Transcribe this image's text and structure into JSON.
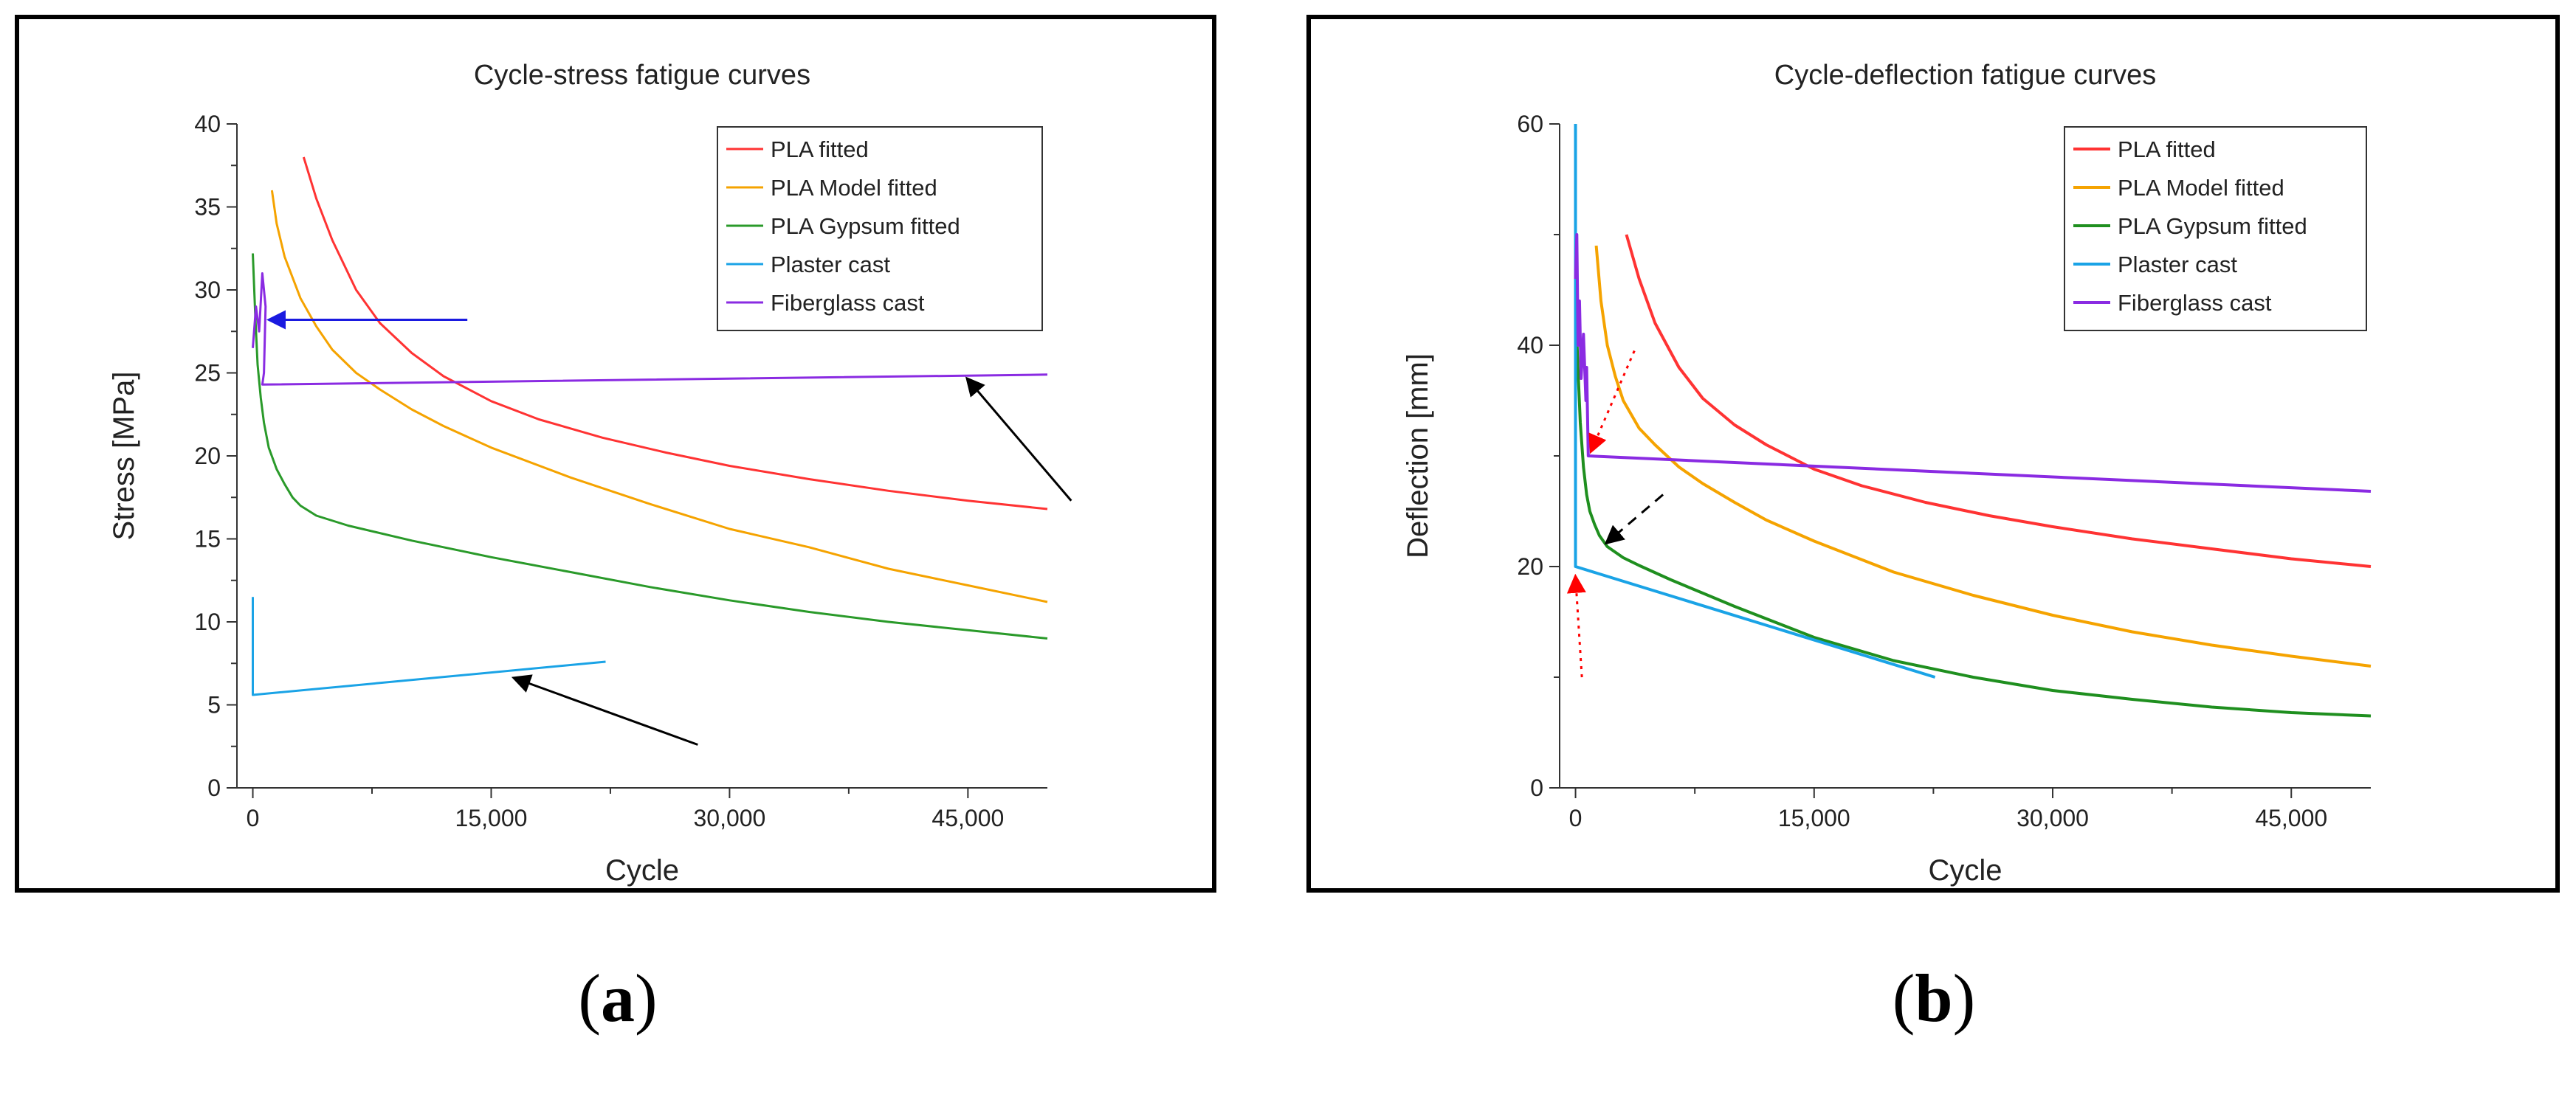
{
  "figure": {
    "captions": [
      {
        "open": "(",
        "letter": "a",
        "close": ")"
      },
      {
        "open": "(",
        "letter": "b",
        "close": ")"
      }
    ]
  },
  "chart_data": [
    {
      "type": "line",
      "title": "Cycle-stress fatigue curves",
      "xlabel": "Cycle",
      "ylabel": "Stress [MPa]",
      "xlim": [
        -1000,
        50000
      ],
      "ylim": [
        0,
        40
      ],
      "xticks": [
        0,
        15000,
        30000,
        45000
      ],
      "xtick_labels": [
        "0",
        "15,000",
        "30,000",
        "45,000"
      ],
      "yticks": [
        0,
        5,
        10,
        15,
        20,
        25,
        30,
        35,
        40
      ],
      "ytick_labels": [
        "0",
        "5",
        "10",
        "15",
        "20",
        "25",
        "30",
        "35",
        "40"
      ],
      "legend_position": "top-right",
      "series": [
        {
          "name": "PLA fitted",
          "color": "#ff3333",
          "x": [
            3200,
            4000,
            5000,
            6500,
            8000,
            10000,
            12000,
            15000,
            18000,
            22000,
            26000,
            30000,
            35000,
            40000,
            45000,
            50000
          ],
          "y": [
            38,
            35.5,
            33,
            30,
            28,
            26.2,
            24.8,
            23.3,
            22.2,
            21.1,
            20.2,
            19.4,
            18.6,
            17.9,
            17.3,
            16.8
          ]
        },
        {
          "name": "PLA Model fitted",
          "color": "#f5a300",
          "x": [
            1200,
            1500,
            2000,
            3000,
            4000,
            5000,
            6500,
            8000,
            10000,
            12000,
            15000,
            20000,
            25000,
            30000,
            35000,
            40000,
            45000,
            50000
          ],
          "y": [
            36,
            34,
            32,
            29.5,
            27.8,
            26.4,
            25,
            24,
            22.8,
            21.8,
            20.5,
            18.7,
            17.1,
            15.6,
            14.5,
            13.2,
            12.2,
            11.2
          ]
        },
        {
          "name": "PLA Gypsum fitted",
          "color": "#2a9a2a",
          "x": [
            0,
            150,
            300,
            500,
            700,
            1000,
            1500,
            2000,
            2500,
            3000,
            4000,
            6000,
            10000,
            15000,
            20000,
            25000,
            30000,
            35000,
            40000,
            45000,
            50000
          ],
          "y": [
            32.2,
            28.5,
            25.5,
            23.5,
            22,
            20.5,
            19.2,
            18.3,
            17.5,
            17,
            16.4,
            15.8,
            14.9,
            13.9,
            13,
            12.1,
            11.3,
            10.6,
            10,
            9.5,
            9
          ]
        },
        {
          "name": "Plaster cast",
          "color": "#1aa3e6",
          "x": [
            0,
            0,
            22200
          ],
          "y": [
            11.5,
            5.6,
            7.6
          ]
        },
        {
          "name": "Fiberglass cast",
          "color": "#8a2be2",
          "x": [
            0,
            200,
            400,
            600,
            800,
            700,
            600,
            50000
          ],
          "y": [
            26.5,
            29,
            27.5,
            31,
            29,
            25,
            24.3,
            24.9
          ]
        }
      ],
      "annotations": [
        {
          "type": "arrow",
          "color": "#1a1ae0",
          "style": "solid",
          "from": [
            13500,
            28.2
          ],
          "to": [
            1100,
            28.2
          ]
        },
        {
          "type": "arrow",
          "color": "#000000",
          "style": "solid",
          "from": [
            51500,
            17.3
          ],
          "to": [
            45000,
            24.6
          ]
        },
        {
          "type": "arrow",
          "color": "#000000",
          "style": "solid",
          "from": [
            28000,
            2.6
          ],
          "to": [
            16500,
            6.6
          ]
        }
      ]
    },
    {
      "type": "line",
      "title": "Cycle-deflection fatigue curves",
      "xlabel": "Cycle",
      "ylabel": "Deflection [mm]",
      "xlim": [
        -1000,
        50000
      ],
      "ylim": [
        0,
        60
      ],
      "xticks": [
        0,
        15000,
        30000,
        45000
      ],
      "xtick_labels": [
        "0",
        "15,000",
        "30,000",
        "45,000"
      ],
      "yticks": [
        0,
        20,
        40,
        60
      ],
      "ytick_labels": [
        "0",
        "20",
        "40",
        "60"
      ],
      "legend_position": "top-right",
      "series": [
        {
          "name": "PLA fitted",
          "color": "#ff3333",
          "x": [
            3200,
            4000,
            5000,
            6500,
            8000,
            10000,
            12000,
            15000,
            18000,
            22000,
            26000,
            30000,
            35000,
            40000,
            45000,
            50000
          ],
          "y": [
            50,
            46,
            42,
            38,
            35.2,
            32.8,
            31,
            28.8,
            27.3,
            25.8,
            24.6,
            23.6,
            22.5,
            21.6,
            20.7,
            20
          ]
        },
        {
          "name": "PLA Model fitted",
          "color": "#f5a300",
          "x": [
            1300,
            1600,
            2000,
            2500,
            3000,
            4000,
            5000,
            6500,
            8000,
            10000,
            12000,
            15000,
            20000,
            25000,
            30000,
            35000,
            40000,
            45000,
            50000
          ],
          "y": [
            49,
            44,
            40,
            37.2,
            35,
            32.5,
            31,
            29,
            27.5,
            25.8,
            24.2,
            22.3,
            19.5,
            17.4,
            15.6,
            14.1,
            12.9,
            11.9,
            11
          ]
        },
        {
          "name": "PLA Gypsum fitted",
          "color": "#1f8f1f",
          "x": [
            50,
            150,
            300,
            500,
            700,
            900,
            1200,
            1500,
            2000,
            3000,
            4000,
            6000,
            8000,
            10000,
            15000,
            20000,
            25000,
            30000,
            35000,
            40000,
            45000,
            50000
          ],
          "y": [
            42,
            38,
            33,
            29,
            26.5,
            25,
            23.8,
            22.8,
            21.8,
            20.8,
            20.1,
            18.8,
            17.6,
            16.4,
            13.6,
            11.5,
            10,
            8.8,
            8,
            7.3,
            6.8,
            6.5
          ]
        },
        {
          "name": "Plaster cast",
          "color": "#1aa3e6",
          "x": [
            0,
            0,
            22600
          ],
          "y": [
            60,
            20,
            10
          ]
        },
        {
          "name": "Fiberglass cast",
          "color": "#8a2be2",
          "x": [
            0,
            80,
            160,
            250,
            350,
            500,
            650,
            700,
            800,
            50000
          ],
          "y": [
            46,
            50,
            40,
            44,
            37,
            41,
            35,
            38,
            30,
            26.8
          ]
        }
      ],
      "annotations": [
        {
          "type": "arrow",
          "color": "#ff0000",
          "style": "dotted",
          "from": [
            3700,
            39.5
          ],
          "to": [
            1000,
            30.5
          ]
        },
        {
          "type": "arrow",
          "color": "#000000",
          "style": "dashed",
          "from": [
            5500,
            26.5
          ],
          "to": [
            2000,
            22.2
          ]
        },
        {
          "type": "arrow",
          "color": "#ff0000",
          "style": "dotted",
          "from": [
            400,
            10
          ],
          "to": [
            0,
            19
          ]
        }
      ]
    }
  ]
}
